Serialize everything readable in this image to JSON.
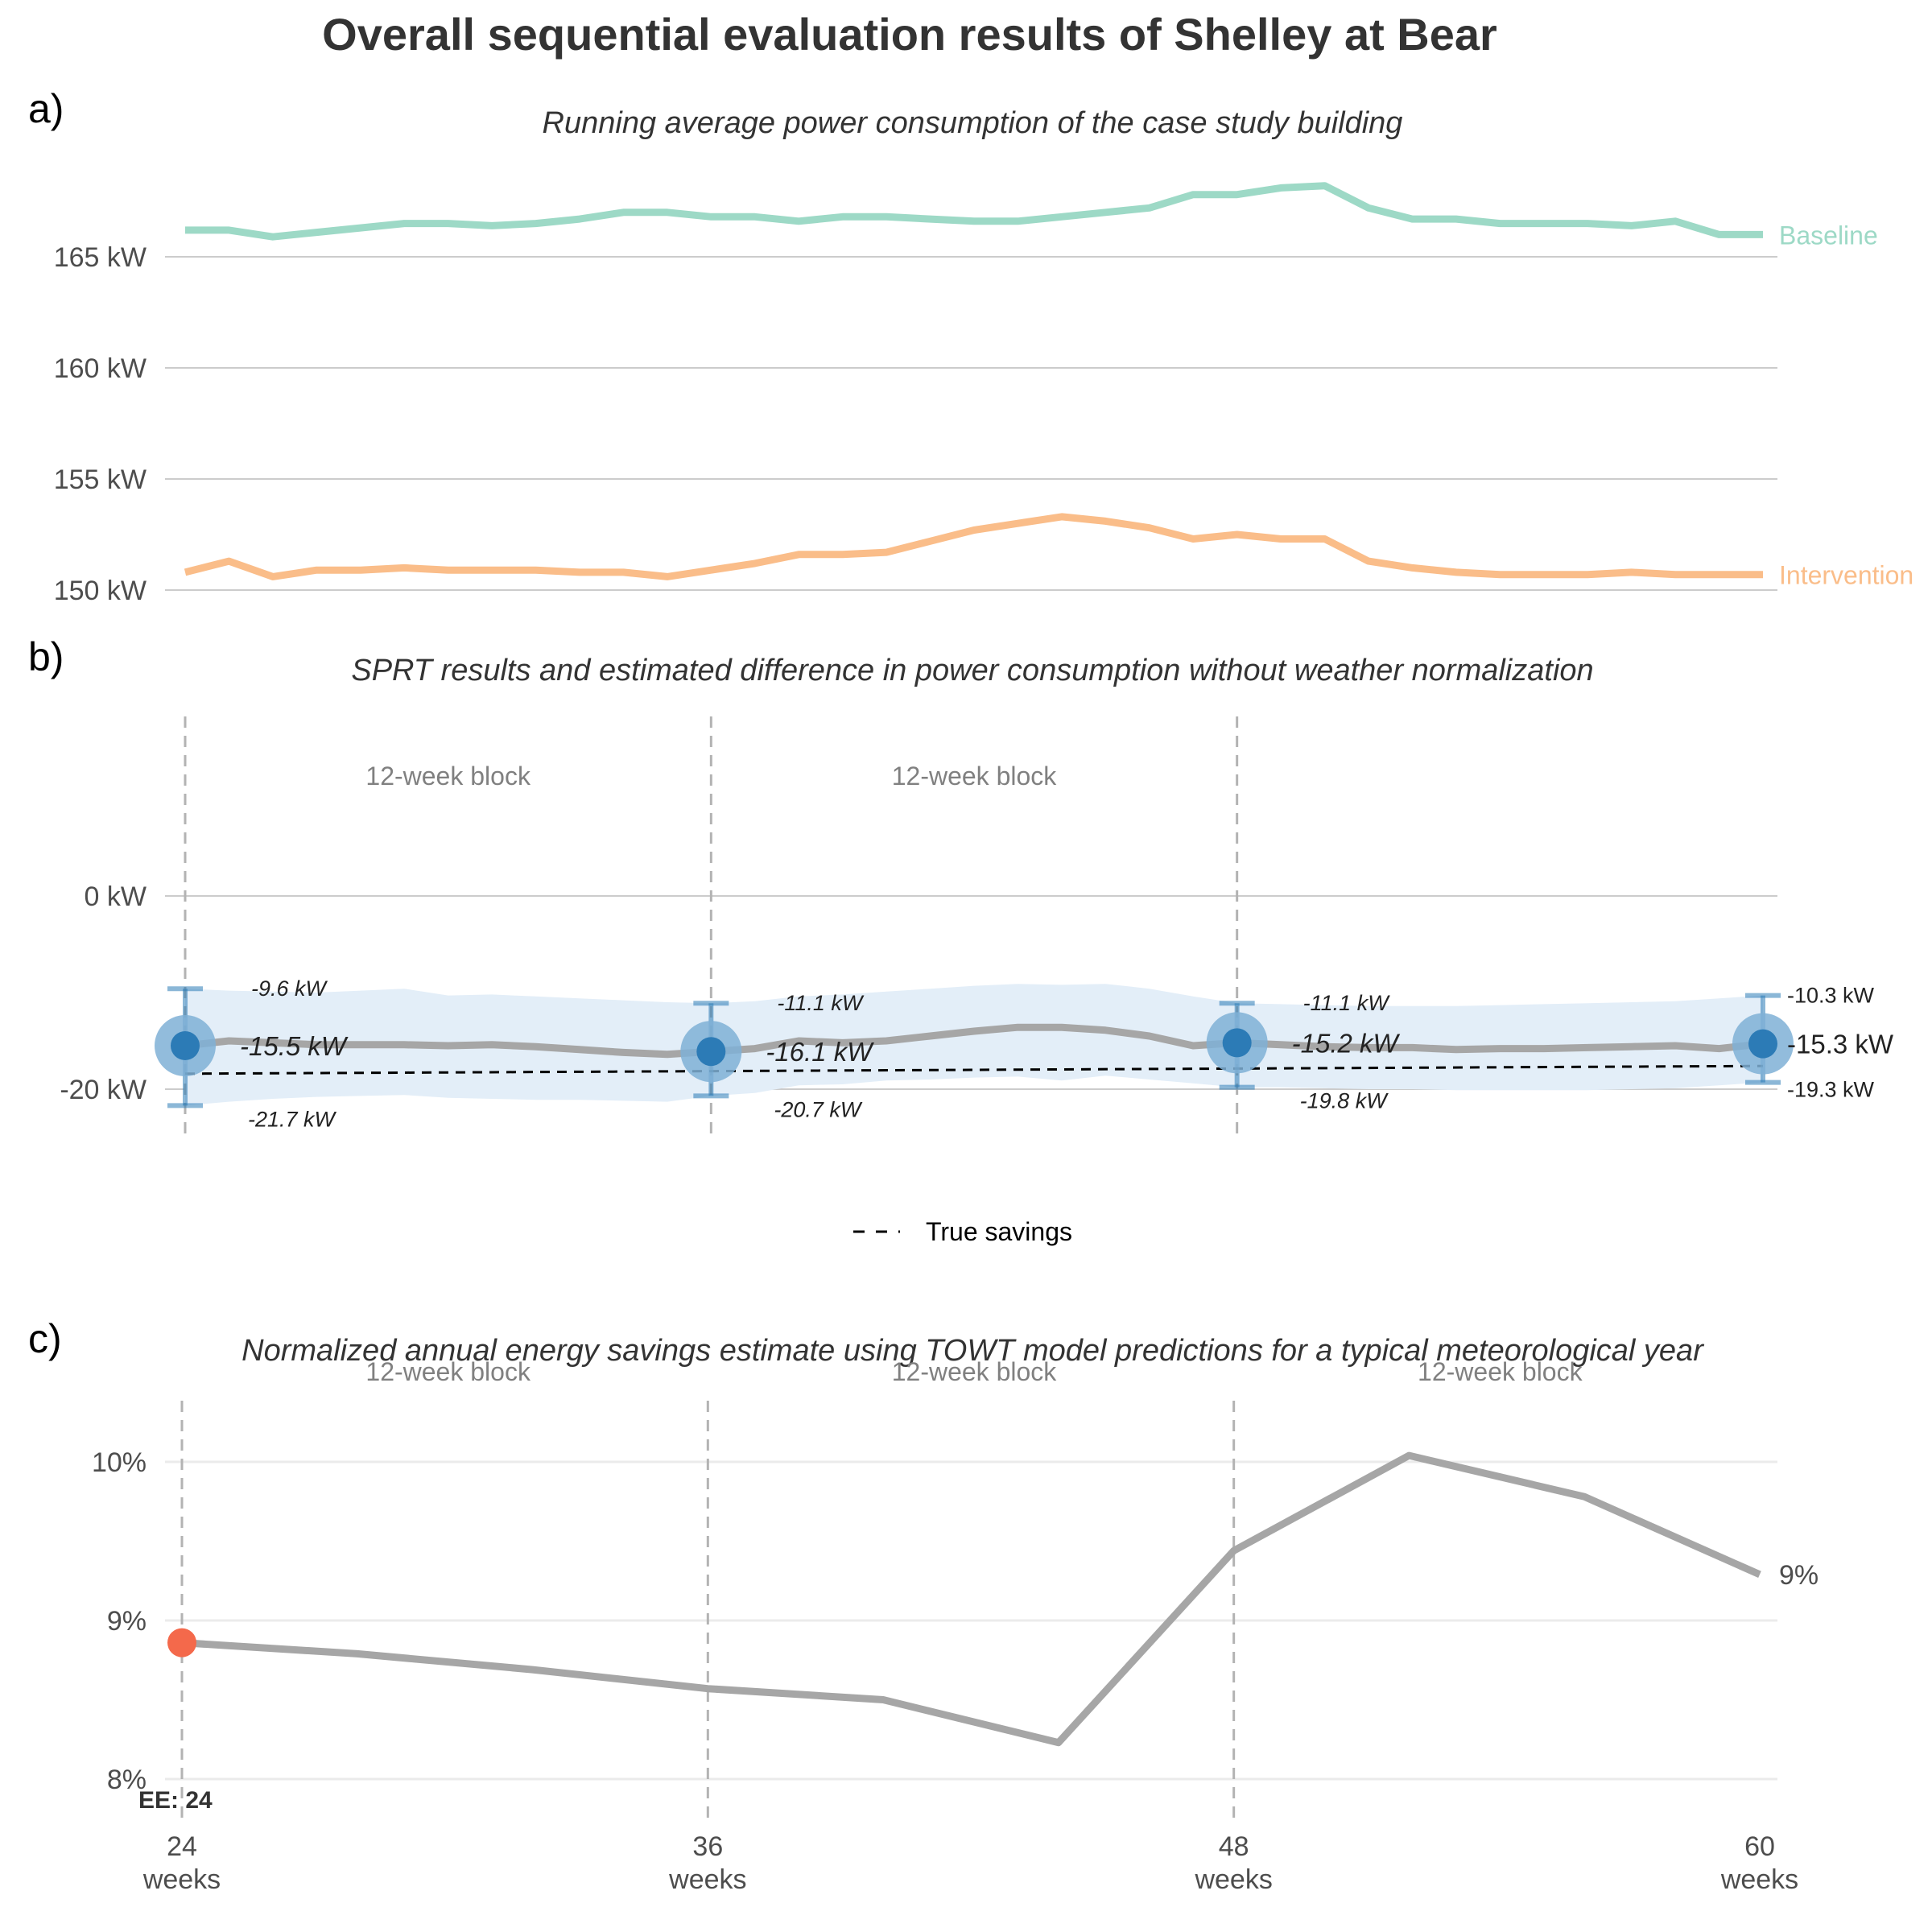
{
  "title": "Overall sequential evaluation results of Shelley at Bear",
  "colors": {
    "baseline": "#9dd9c6",
    "intervention": "#fabd89",
    "estimate_point": "#2c7bb6",
    "estimate_halo": "#7fb0d6",
    "ci_band": "#e3eef8",
    "gray_line": "#a6a6a6",
    "ee_point": "#f4694b"
  },
  "chart_data": [
    {
      "panel": "a)",
      "type": "line",
      "subtitle": "Running average power consumption of the case study building",
      "x": [
        24,
        25,
        26,
        27,
        28,
        29,
        30,
        31,
        32,
        33,
        34,
        35,
        36,
        37,
        38,
        39,
        40,
        41,
        42,
        43,
        44,
        45,
        46,
        47,
        48,
        49,
        50,
        51,
        52,
        53,
        54,
        55,
        56,
        57,
        58,
        59,
        60
      ],
      "series": [
        {
          "name": "Baseline",
          "values": [
            166.2,
            166.2,
            165.9,
            166.1,
            166.3,
            166.5,
            166.5,
            166.4,
            166.5,
            166.7,
            167.0,
            167.0,
            166.8,
            166.8,
            166.6,
            166.8,
            166.8,
            166.7,
            166.6,
            166.6,
            166.8,
            167.0,
            167.2,
            167.8,
            167.8,
            168.1,
            168.2,
            167.2,
            166.7,
            166.7,
            166.5,
            166.5,
            166.5,
            166.4,
            166.6,
            166.0,
            166.0
          ]
        },
        {
          "name": "Intervention",
          "values": [
            150.8,
            151.3,
            150.6,
            150.9,
            150.9,
            151.0,
            150.9,
            150.9,
            150.9,
            150.8,
            150.8,
            150.6,
            150.9,
            151.2,
            151.6,
            151.6,
            151.7,
            152.2,
            152.7,
            153.0,
            153.3,
            153.1,
            152.8,
            152.3,
            152.5,
            152.3,
            152.3,
            151.3,
            151.0,
            150.8,
            150.7,
            150.7,
            150.7,
            150.8,
            150.7,
            150.7,
            150.7
          ]
        }
      ],
      "y_ticks": [
        {
          "value": 150,
          "label": "150 kW"
        },
        {
          "value": 155,
          "label": "155 kW"
        },
        {
          "value": 160,
          "label": "160 kW"
        },
        {
          "value": 165,
          "label": "165 kW"
        }
      ],
      "ylim": [
        149.5,
        169
      ],
      "grid": true
    },
    {
      "panel": "b)",
      "type": "line",
      "subtitle": "SPRT results and estimated difference in power consumption without weather normalization",
      "x": [
        24,
        25,
        26,
        27,
        28,
        29,
        30,
        31,
        32,
        33,
        34,
        35,
        36,
        37,
        38,
        39,
        40,
        41,
        42,
        43,
        44,
        45,
        46,
        47,
        48,
        49,
        50,
        51,
        52,
        53,
        54,
        55,
        56,
        57,
        58,
        59,
        60
      ],
      "estimate": [
        -15.5,
        -15.0,
        -15.2,
        -15.4,
        -15.4,
        -15.4,
        -15.5,
        -15.4,
        -15.6,
        -15.9,
        -16.2,
        -16.4,
        -16.1,
        -15.8,
        -15.0,
        -15.2,
        -15.0,
        -14.5,
        -14.0,
        -13.6,
        -13.6,
        -13.9,
        -14.5,
        -15.5,
        -15.2,
        -15.4,
        -15.6,
        -15.7,
        -15.7,
        -15.9,
        -15.8,
        -15.8,
        -15.7,
        -15.6,
        -15.5,
        -15.8,
        -15.3
      ],
      "ci_upper": [
        -9.6,
        -9.8,
        -9.9,
        -10.0,
        -9.8,
        -9.6,
        -10.3,
        -10.2,
        -10.4,
        -10.6,
        -10.8,
        -11.0,
        -11.1,
        -10.9,
        -10.4,
        -10.2,
        -9.9,
        -9.6,
        -9.3,
        -9.1,
        -9.2,
        -9.1,
        -9.6,
        -10.4,
        -11.1,
        -11.2,
        -11.3,
        -11.4,
        -11.4,
        -11.4,
        -11.3,
        -11.2,
        -11.1,
        -11.0,
        -10.9,
        -10.6,
        -10.3
      ],
      "ci_lower": [
        -21.7,
        -21.3,
        -21.0,
        -20.8,
        -20.7,
        -20.6,
        -20.9,
        -21.0,
        -21.1,
        -21.1,
        -21.2,
        -21.3,
        -20.7,
        -20.4,
        -19.6,
        -19.5,
        -19.1,
        -19.0,
        -18.8,
        -18.7,
        -19.1,
        -18.6,
        -19.0,
        -19.4,
        -19.8,
        -19.8,
        -19.9,
        -20.0,
        -20.0,
        -20.1,
        -20.1,
        -20.1,
        -20.1,
        -20.0,
        -19.9,
        -19.6,
        -19.3
      ],
      "true_savings": {
        "name": "True savings",
        "start": -18.4,
        "end": -17.6
      },
      "checkpoints": [
        {
          "x": 24,
          "estimate": -15.5,
          "upper": -9.6,
          "lower": -21.7,
          "estimate_label": "-15.5 kW",
          "upper_label": "-9.6 kW",
          "lower_label": "-21.7 kW"
        },
        {
          "x": 36,
          "estimate": -16.1,
          "upper": -11.1,
          "lower": -20.7,
          "estimate_label": "-16.1 kW",
          "upper_label": "-11.1 kW",
          "lower_label": "-20.7 kW"
        },
        {
          "x": 48,
          "estimate": -15.2,
          "upper": -11.1,
          "lower": -19.8,
          "estimate_label": "-15.2 kW",
          "upper_label": "-11.1 kW",
          "lower_label": "-19.8 kW"
        },
        {
          "x": 60,
          "estimate": -15.3,
          "upper": -10.3,
          "lower": -19.3,
          "estimate_label": "-15.3 kW",
          "upper_label": "-10.3 kW",
          "lower_label": "-19.3 kW"
        }
      ],
      "block_labels": [
        {
          "x": 30,
          "text": "12-week block"
        },
        {
          "x": 42,
          "text": "12-week block"
        }
      ],
      "y_ticks": [
        {
          "value": 0,
          "label": "0 kW"
        },
        {
          "value": -20,
          "label": "-20 kW"
        }
      ],
      "ylim": [
        -26,
        19
      ],
      "legend": {
        "label": "True savings",
        "position": "bottom"
      },
      "grid": true
    },
    {
      "panel": "c)",
      "type": "line",
      "subtitle": "Normalized annual energy savings estimate using TOWT model predictions for a typical meteorological year",
      "x": [
        24,
        28,
        32,
        36,
        40,
        44,
        48,
        52,
        56,
        60
      ],
      "values": [
        8.86,
        8.79,
        8.69,
        8.57,
        8.5,
        8.23,
        9.44,
        10.04,
        9.78,
        9.29
      ],
      "end_label": "9%",
      "ee": {
        "x": 24,
        "value": 8.86,
        "label": "EE: 24"
      },
      "block_labels": [
        {
          "x": 30,
          "text": "12-week block"
        },
        {
          "x": 42,
          "text": "12-week block"
        },
        {
          "x": 54,
          "text": "12-week block"
        }
      ],
      "y_ticks": [
        {
          "value": 8,
          "label": "8%"
        },
        {
          "value": 9,
          "label": "9%"
        },
        {
          "value": 10,
          "label": "10%"
        }
      ],
      "ylim": [
        7.85,
        10.4
      ],
      "x_ticks": [
        {
          "value": 24,
          "number": "24",
          "unit": "weeks"
        },
        {
          "value": 36,
          "number": "36",
          "unit": "weeks"
        },
        {
          "value": 48,
          "number": "48",
          "unit": "weeks"
        },
        {
          "value": 60,
          "number": "60",
          "unit": "weeks"
        }
      ],
      "grid": true
    }
  ]
}
